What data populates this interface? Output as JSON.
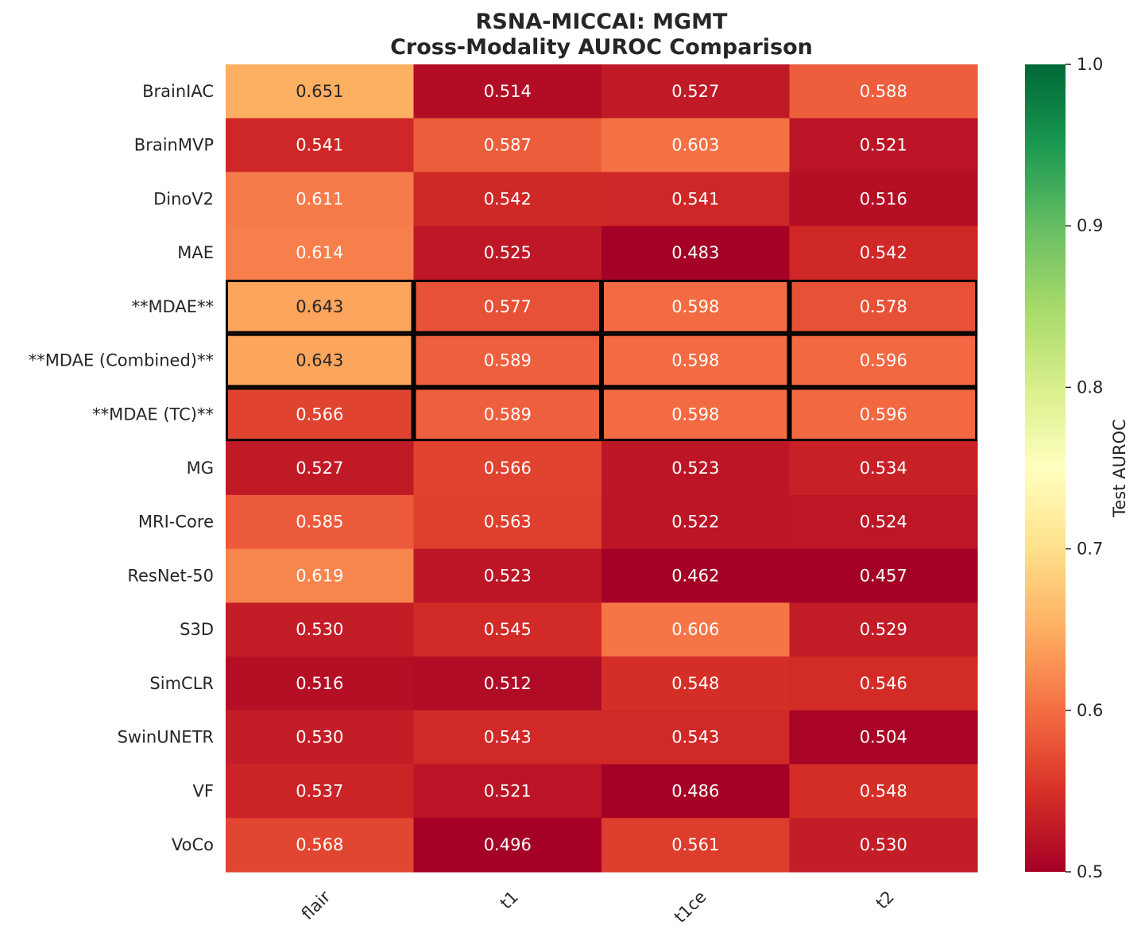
{
  "chart_data": {
    "type": "heatmap",
    "title_line1": "RSNA-MICCAI: MGMT",
    "title_line2": "Cross-Modality AUROC Comparison",
    "columns": [
      "flair",
      "t1",
      "t1ce",
      "t2"
    ],
    "rows": [
      "BrainIAC",
      "BrainMVP",
      "DinoV2",
      "MAE",
      "**MDAE**",
      "**MDAE (Combined)**",
      "**MDAE (TC)**",
      "MG",
      "MRI-Core",
      "ResNet-50",
      "S3D",
      "SimCLR",
      "SwinUNETR",
      "VF",
      "VoCo"
    ],
    "values": [
      [
        0.651,
        0.514,
        0.527,
        0.588
      ],
      [
        0.541,
        0.587,
        0.603,
        0.521
      ],
      [
        0.611,
        0.542,
        0.541,
        0.516
      ],
      [
        0.614,
        0.525,
        0.483,
        0.542
      ],
      [
        0.643,
        0.577,
        0.598,
        0.578
      ],
      [
        0.643,
        0.589,
        0.598,
        0.596
      ],
      [
        0.566,
        0.589,
        0.598,
        0.596
      ],
      [
        0.527,
        0.566,
        0.523,
        0.534
      ],
      [
        0.585,
        0.563,
        0.522,
        0.524
      ],
      [
        0.619,
        0.523,
        0.462,
        0.457
      ],
      [
        0.53,
        0.545,
        0.606,
        0.529
      ],
      [
        0.516,
        0.512,
        0.548,
        0.546
      ],
      [
        0.53,
        0.543,
        0.543,
        0.504
      ],
      [
        0.537,
        0.521,
        0.486,
        0.548
      ],
      [
        0.568,
        0.496,
        0.561,
        0.53
      ]
    ],
    "highlighted_rows": [
      "**MDAE**",
      "**MDAE (Combined)**",
      "**MDAE (TC)**"
    ],
    "colormap": "RdYlGn",
    "vmin": 0.5,
    "vmax": 1.0,
    "colorbar_label": "Test AUROC",
    "colorbar_ticks": [
      0.5,
      0.6,
      0.7,
      0.8,
      0.9,
      1.0
    ],
    "colorbar_tick_labels": [
      "0.5",
      "0.6",
      "0.7",
      "0.8",
      "0.9",
      "1.0"
    ],
    "number_format": "3 decimals"
  }
}
